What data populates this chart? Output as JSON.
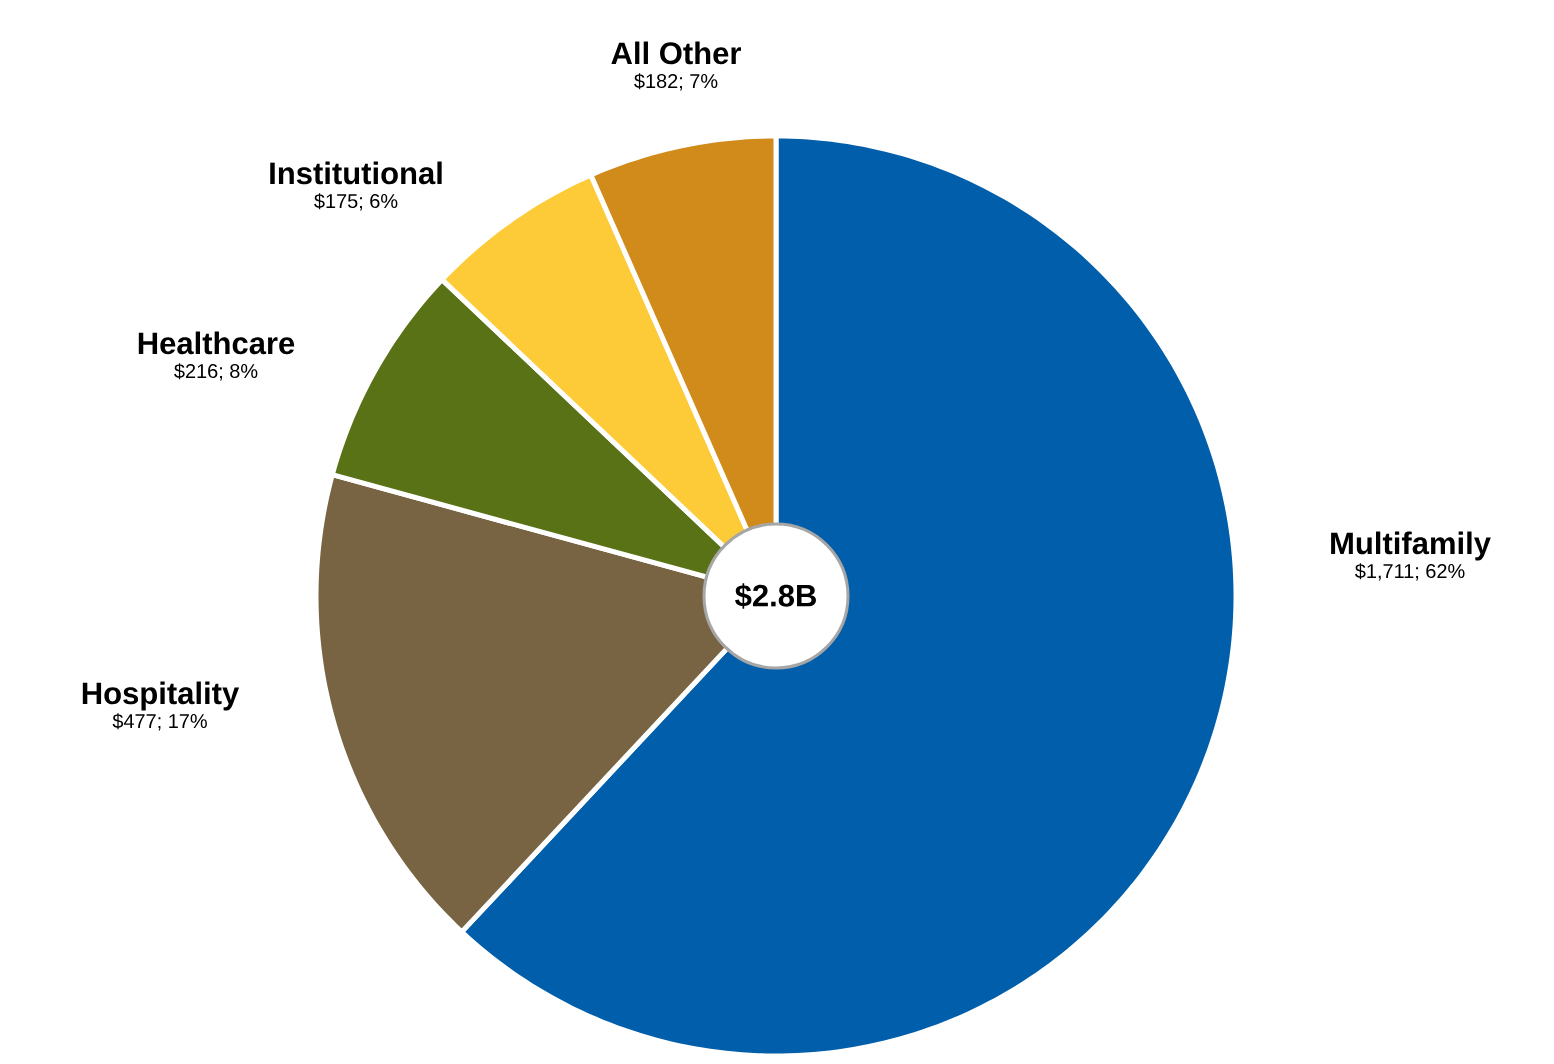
{
  "chart_data": {
    "type": "pie",
    "categories": [
      "Multifamily",
      "Hospitality",
      "Healthcare",
      "Institutional",
      "All Other"
    ],
    "values": [
      1711,
      477,
      216,
      175,
      182
    ],
    "colors": [
      "#005eaa",
      "#786442",
      "#5a7216",
      "#fecb38",
      "#d08b1a"
    ],
    "value_labels": [
      "$1,711; 62%",
      "$477; 17%",
      "$216; 8%",
      "$175; 6%",
      "$182; 7%"
    ],
    "annotations": [
      "$2.8B"
    ]
  }
}
